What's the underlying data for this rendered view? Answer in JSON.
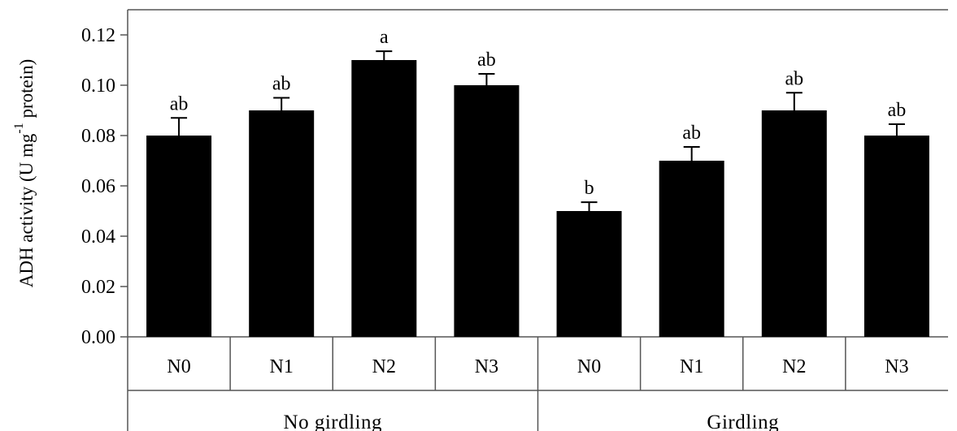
{
  "chart_data": {
    "type": "bar",
    "title": "",
    "ylabel": {
      "main": "ADH activity (U mg",
      "superscript": "-1",
      "suffix": " protein)"
    },
    "ylim": [
      0,
      0.13
    ],
    "yticks": [
      "0.00",
      "0.02",
      "0.04",
      "0.06",
      "0.08",
      "0.10",
      "0.12"
    ],
    "grid": false,
    "groups": [
      {
        "label": "No girdling",
        "categories": [
          "N0",
          "N1",
          "N2",
          "N3"
        ]
      },
      {
        "label": "Girdling",
        "categories": [
          "N0",
          "N1",
          "N2",
          "N3"
        ]
      }
    ],
    "values": [
      0.08,
      0.09,
      0.11,
      0.1,
      0.05,
      0.07,
      0.09,
      0.08
    ],
    "errors": [
      0.007,
      0.005,
      0.0035,
      0.0045,
      0.0035,
      0.0055,
      0.007,
      0.0045
    ],
    "significance": [
      "ab",
      "ab",
      "a",
      "ab",
      "b",
      "ab",
      "ab",
      "ab"
    ],
    "bar_color": "#000000"
  }
}
